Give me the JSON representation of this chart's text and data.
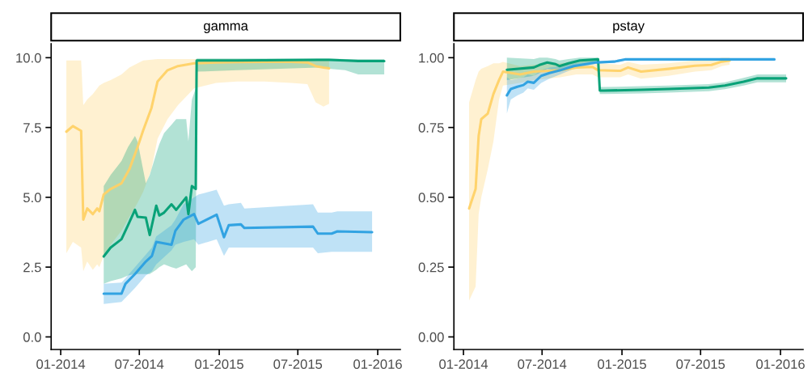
{
  "chart_data": [
    {
      "type": "line",
      "title": "gamma",
      "xlim": [
        "2013-12-10",
        "2016-02-22"
      ],
      "ylim": [
        -0.45,
        10.5
      ],
      "xticks": [
        {
          "value": "2014-01-01",
          "label": "01-2014"
        },
        {
          "value": "2014-07-01",
          "label": "07-2014"
        },
        {
          "value": "2015-01-01",
          "label": "01-2015"
        },
        {
          "value": "2015-07-01",
          "label": "07-2015"
        },
        {
          "value": "2016-01-01",
          "label": "01-2016"
        }
      ],
      "yticks": [
        {
          "value": 0,
          "label": "0.0"
        },
        {
          "value": 2.5,
          "label": "2.5"
        },
        {
          "value": 5,
          "label": "5.0"
        },
        {
          "value": 7.5,
          "label": "7.5"
        },
        {
          "value": 10,
          "label": "10.0"
        }
      ],
      "series": [
        {
          "color": "#ffd166",
          "x": [
            "2014-01-14",
            "2014-01-29",
            "2014-02-17",
            "2014-02-22",
            "2014-03-03",
            "2014-03-16",
            "2014-03-26",
            "2014-03-31",
            "2014-04-10",
            "2014-04-26",
            "2014-05-21",
            "2014-06-08",
            "2014-06-27",
            "2014-07-10",
            "2014-07-29",
            "2014-08-12",
            "2014-09-04",
            "2014-09-28",
            "2014-11-04",
            "2014-12-25",
            "2015-02-11",
            "2015-04-15",
            "2015-06-16",
            "2015-07-23",
            "2015-08-11",
            "2015-08-29",
            "2015-09-11"
          ],
          "values": [
            7.35,
            7.55,
            7.38,
            4.2,
            4.6,
            4.4,
            4.6,
            4.5,
            5.1,
            5.3,
            5.5,
            6.0,
            6.8,
            7.4,
            8.2,
            9.15,
            9.55,
            9.7,
            9.8,
            9.83,
            9.84,
            9.85,
            9.85,
            9.83,
            9.7,
            9.65,
            9.62
          ],
          "lower": [
            3.0,
            3.4,
            3.2,
            2.35,
            2.7,
            2.4,
            2.6,
            2.5,
            2.9,
            3.3,
            3.8,
            4.3,
            4.8,
            5.2,
            6.0,
            7.1,
            7.8,
            8.3,
            8.9,
            9.1,
            9.15,
            9.15,
            9.1,
            9.05,
            8.4,
            8.25,
            8.35
          ],
          "upper": [
            9.9,
            9.9,
            9.9,
            8.3,
            8.5,
            8.7,
            8.9,
            9.0,
            9.1,
            9.2,
            9.4,
            9.65,
            9.8,
            9.9,
            9.93,
            9.95,
            9.95,
            9.95,
            9.95,
            9.95,
            9.95,
            9.95,
            9.95,
            9.95,
            9.95,
            9.95,
            9.95
          ]
        },
        {
          "color": "#009e73",
          "x": [
            "2014-04-10",
            "2014-04-26",
            "2014-05-21",
            "2014-06-05",
            "2014-06-21",
            "2014-06-27",
            "2014-07-16",
            "2014-07-25",
            "2014-08-09",
            "2014-08-16",
            "2014-08-27",
            "2014-09-13",
            "2014-09-24",
            "2014-10-17",
            "2014-10-22",
            "2014-10-30",
            "2014-11-08",
            "2014-11-10",
            "2015-02-11",
            "2015-08-16",
            "2015-09-11",
            "2015-10-18",
            "2015-11-17",
            "2016-01-16"
          ],
          "values": [
            2.88,
            3.2,
            3.5,
            4.0,
            4.55,
            4.3,
            4.27,
            3.65,
            4.7,
            4.35,
            4.45,
            4.75,
            4.55,
            5.0,
            4.4,
            5.4,
            5.3,
            9.9,
            9.9,
            9.92,
            9.92,
            9.9,
            9.88,
            9.88
          ],
          "lower": [
            1.9,
            2.0,
            2.1,
            2.2,
            2.25,
            2.25,
            2.25,
            2.25,
            2.4,
            2.5,
            2.6,
            2.5,
            2.45,
            2.6,
            2.5,
            2.35,
            2.5,
            9.5,
            9.55,
            9.65,
            9.6,
            9.55,
            9.4,
            9.4
          ],
          "upper": [
            5.4,
            5.8,
            6.3,
            6.8,
            7.2,
            7.0,
            5.5,
            5.8,
            6.57,
            6.9,
            7.3,
            7.6,
            7.8,
            7.8,
            7.0,
            8.5,
            8.9,
            9.97,
            9.97,
            9.97,
            9.97,
            9.95,
            9.95,
            9.95
          ]
        },
        {
          "color": "#2a9fe0",
          "x": [
            "2014-04-10",
            "2014-05-21",
            "2014-05-30",
            "2014-06-21",
            "2014-07-16",
            "2014-07-30",
            "2014-08-09",
            "2014-09-13",
            "2014-09-22",
            "2014-10-11",
            "2014-11-04",
            "2014-11-14",
            "2014-12-26",
            "2015-01-12",
            "2015-01-23",
            "2015-02-20",
            "2015-02-28",
            "2015-08-05",
            "2015-08-16",
            "2015-09-17",
            "2015-09-30",
            "2015-12-19"
          ],
          "values": [
            1.55,
            1.55,
            1.9,
            2.25,
            2.7,
            2.9,
            3.4,
            3.3,
            3.8,
            4.2,
            4.4,
            4.05,
            4.38,
            3.57,
            4.0,
            4.03,
            3.9,
            3.95,
            3.7,
            3.7,
            3.78,
            3.75
          ],
          "lower": [
            1.18,
            1.25,
            1.4,
            1.75,
            2.2,
            2.35,
            2.6,
            3.1,
            3.3,
            3.4,
            3.5,
            3.3,
            3.5,
            2.9,
            3.2,
            3.2,
            3.2,
            3.2,
            3.0,
            3.05,
            3.05,
            3.05
          ],
          "upper": [
            1.9,
            1.95,
            2.1,
            2.5,
            2.95,
            3.2,
            3.6,
            4.0,
            4.2,
            4.75,
            5.0,
            5.1,
            5.27,
            4.7,
            4.75,
            4.8,
            4.6,
            4.75,
            4.45,
            4.45,
            4.5,
            4.5
          ]
        }
      ]
    },
    {
      "type": "line",
      "title": "pstay",
      "xlim": [
        "2013-12-10",
        "2016-02-22"
      ],
      "ylim": [
        -0.045,
        1.05
      ],
      "xticks": [
        {
          "value": "2014-01-01",
          "label": "01-2014"
        },
        {
          "value": "2014-07-01",
          "label": "07-2014"
        },
        {
          "value": "2015-01-01",
          "label": "01-2015"
        },
        {
          "value": "2015-07-01",
          "label": "07-2015"
        },
        {
          "value": "2016-01-01",
          "label": "01-2016"
        }
      ],
      "yticks": [
        {
          "value": 0,
          "label": "0.00"
        },
        {
          "value": 0.25,
          "label": "0.25"
        },
        {
          "value": 0.5,
          "label": "0.50"
        },
        {
          "value": 0.75,
          "label": "0.75"
        },
        {
          "value": 1,
          "label": "1.00"
        }
      ],
      "series": [
        {
          "color": "#ffd166",
          "x": [
            "2014-01-14",
            "2014-01-29",
            "2014-02-05",
            "2014-02-11",
            "2014-02-26",
            "2014-03-11",
            "2014-03-24",
            "2014-04-02",
            "2014-05-11",
            "2014-06-12",
            "2014-08-12",
            "2014-09-18",
            "2014-10-25",
            "2014-11-07",
            "2014-12-28",
            "2015-01-15",
            "2015-02-14",
            "2015-04-18",
            "2015-06-18",
            "2015-07-26",
            "2015-08-19",
            "2015-09-06"
          ],
          "values": [
            0.46,
            0.53,
            0.72,
            0.78,
            0.8,
            0.87,
            0.92,
            0.95,
            0.94,
            0.95,
            0.955,
            0.965,
            0.967,
            0.955,
            0.953,
            0.965,
            0.95,
            0.96,
            0.971,
            0.974,
            0.986,
            0.99
          ],
          "lower": [
            0.13,
            0.18,
            0.44,
            0.5,
            0.6,
            0.7,
            0.85,
            0.9,
            0.91,
            0.92,
            0.93,
            0.94,
            0.94,
            0.93,
            0.93,
            0.94,
            0.925,
            0.935,
            0.95,
            0.955,
            0.97,
            0.975
          ],
          "upper": [
            0.84,
            0.92,
            0.95,
            0.96,
            0.97,
            0.98,
            0.98,
            0.985,
            0.97,
            0.975,
            0.98,
            0.985,
            0.99,
            0.98,
            0.975,
            0.985,
            0.975,
            0.98,
            0.99,
            0.99,
            1.0,
            1.0
          ]
        },
        {
          "color": "#009e73",
          "x": [
            "2014-04-11",
            "2014-06-12",
            "2014-06-25",
            "2014-07-13",
            "2014-08-01",
            "2014-08-10",
            "2014-08-31",
            "2014-09-26",
            "2014-11-07",
            "2014-11-11",
            "2014-11-20",
            "2015-02-14",
            "2015-04-18",
            "2015-07-20",
            "2015-08-26",
            "2015-10-08",
            "2015-11-09",
            "2016-01-14"
          ],
          "values": [
            0.957,
            0.965,
            0.974,
            0.983,
            0.977,
            0.97,
            0.98,
            0.99,
            0.994,
            0.882,
            0.882,
            0.885,
            0.888,
            0.893,
            0.9,
            0.914,
            0.926,
            0.926
          ],
          "lower": [
            0.92,
            0.935,
            0.945,
            0.96,
            0.955,
            0.95,
            0.965,
            0.975,
            0.985,
            0.87,
            0.87,
            0.872,
            0.875,
            0.88,
            0.887,
            0.9,
            0.912,
            0.912
          ],
          "upper": [
            1.0,
            0.995,
            1.0,
            1.0,
            0.995,
            0.99,
            0.995,
            1.0,
            1.0,
            0.895,
            0.895,
            0.898,
            0.9,
            0.905,
            0.912,
            0.928,
            0.94,
            0.94
          ]
        },
        {
          "color": "#2a9fe0",
          "x": [
            "2014-04-11",
            "2014-04-20",
            "2014-05-05",
            "2014-05-19",
            "2014-05-29",
            "2014-06-12",
            "2014-06-29",
            "2014-07-18",
            "2014-08-12",
            "2014-09-12",
            "2014-11-01",
            "2014-12-14",
            "2015-01-08",
            "2015-12-18"
          ],
          "values": [
            0.865,
            0.888,
            0.896,
            0.902,
            0.914,
            0.91,
            0.935,
            0.945,
            0.955,
            0.97,
            0.983,
            0.986,
            0.994,
            0.994
          ],
          "lower": [
            0.8,
            0.85,
            0.865,
            0.875,
            0.89,
            0.885,
            0.91,
            0.925,
            0.94,
            0.96,
            0.978,
            0.982,
            0.99,
            0.99
          ],
          "upper": [
            0.93,
            0.92,
            0.925,
            0.93,
            0.94,
            0.935,
            0.955,
            0.965,
            0.97,
            0.98,
            0.988,
            0.99,
            0.998,
            0.998
          ]
        }
      ]
    }
  ]
}
